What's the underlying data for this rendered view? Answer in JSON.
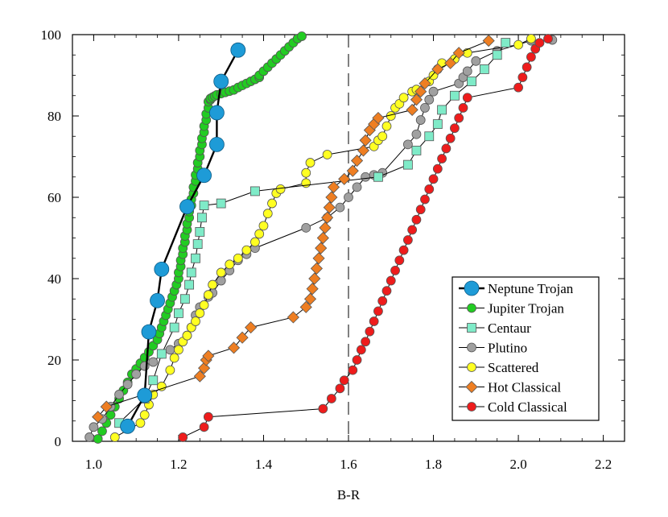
{
  "chart_data": {
    "type": "scatter",
    "title": "",
    "xlabel": "B-R",
    "ylabel": "",
    "xlim": [
      0.95,
      2.25
    ],
    "ylim": [
      0,
      100
    ],
    "xticks": [
      1.0,
      1.2,
      1.4,
      1.6,
      1.8,
      2.0,
      2.2
    ],
    "xtick_labels": [
      "1.0",
      "1.2",
      "1.4",
      "1.6",
      "1.8",
      "2.0",
      "2.2"
    ],
    "yticks": [
      0,
      20,
      40,
      60,
      80,
      100
    ],
    "ytick_labels": [
      "0",
      "20",
      "40",
      "60",
      "80",
      "100"
    ],
    "vline_x": 1.6,
    "grid": false,
    "legend_position": "bottom-right",
    "series": [
      {
        "name": "Neptune Trojan",
        "color": "#1E9BD7",
        "marker": "circle-large",
        "x": [
          1.08,
          1.12,
          1.13,
          1.15,
          1.16,
          1.22,
          1.26,
          1.29,
          1.29,
          1.3,
          1.34
        ],
        "y": [
          3.7,
          11.3,
          26.9,
          34.6,
          42.3,
          57.7,
          65.4,
          73.0,
          80.8,
          88.5,
          96.2
        ]
      },
      {
        "name": "Jupiter Trojan",
        "color": "#22CC22",
        "marker": "circle",
        "x": [
          1.01,
          1.02,
          1.03,
          1.04,
          1.05,
          1.06,
          1.07,
          1.08,
          1.09,
          1.1,
          1.11,
          1.12,
          1.13,
          1.14,
          1.15,
          1.155,
          1.16,
          1.165,
          1.17,
          1.175,
          1.18,
          1.185,
          1.19,
          1.195,
          1.2,
          1.2,
          1.205,
          1.205,
          1.21,
          1.21,
          1.215,
          1.215,
          1.22,
          1.22,
          1.225,
          1.225,
          1.23,
          1.23,
          1.235,
          1.235,
          1.24,
          1.24,
          1.245,
          1.245,
          1.25,
          1.25,
          1.255,
          1.255,
          1.26,
          1.26,
          1.265,
          1.265,
          1.27,
          1.27,
          1.275,
          1.275,
          1.28,
          1.285,
          1.29,
          1.3,
          1.31,
          1.32,
          1.33,
          1.34,
          1.35,
          1.36,
          1.37,
          1.38,
          1.39,
          1.39,
          1.4,
          1.41,
          1.42,
          1.43,
          1.44,
          1.45,
          1.46,
          1.47,
          1.48,
          1.49
        ],
        "y": [
          0.6,
          2.5,
          4.5,
          6.5,
          8.5,
          10.5,
          12.5,
          14.5,
          16.5,
          17.8,
          19.2,
          20.6,
          22.0,
          23.5,
          25.0,
          26.5,
          28.0,
          29.5,
          31.0,
          32.5,
          34.0,
          35.5,
          37.0,
          38.5,
          40.0,
          41.5,
          43.0,
          44.5,
          46.0,
          47.5,
          49.0,
          50.5,
          52.0,
          53.5,
          55.0,
          56.5,
          58.0,
          59.5,
          61.0,
          62.5,
          64.0,
          65.5,
          67.0,
          68.5,
          70.0,
          71.5,
          73.0,
          74.5,
          76.0,
          77.5,
          79.0,
          80.5,
          82.0,
          83.5,
          84.0,
          84.3,
          84.6,
          84.9,
          85.2,
          85.5,
          85.8,
          86.1,
          86.4,
          87.0,
          87.5,
          88.0,
          88.5,
          89.0,
          89.5,
          90.0,
          91.0,
          92.0,
          93.0,
          94.0,
          95.0,
          96.0,
          97.0,
          98.0,
          99.0,
          99.6
        ],
        "x_note": "",
        "y_note": ""
      },
      {
        "name": "Centaur",
        "color": "#7FEBC8",
        "marker": "square",
        "x": [
          1.06,
          1.12,
          1.14,
          1.16,
          1.19,
          1.2,
          1.215,
          1.225,
          1.23,
          1.24,
          1.245,
          1.25,
          1.255,
          1.26,
          1.3,
          1.38,
          1.67,
          1.74,
          1.76,
          1.79,
          1.81,
          1.82,
          1.85,
          1.89,
          1.92,
          1.95,
          1.97
        ],
        "y": [
          4.5,
          10.5,
          15.0,
          21.5,
          28.0,
          31.5,
          35.0,
          38.5,
          41.5,
          45.0,
          48.5,
          51.5,
          55.0,
          58.0,
          58.5,
          61.5,
          65.0,
          68.0,
          71.5,
          75.0,
          78.0,
          81.5,
          85.0,
          88.5,
          91.5,
          95.0,
          98.0
        ]
      },
      {
        "name": "Plutino",
        "color": "#A0A0A0",
        "marker": "circle",
        "x": [
          0.99,
          1.0,
          1.02,
          1.04,
          1.06,
          1.08,
          1.1,
          1.12,
          1.14,
          1.16,
          1.18,
          1.2,
          1.22,
          1.23,
          1.24,
          1.25,
          1.27,
          1.28,
          1.3,
          1.32,
          1.34,
          1.36,
          1.38,
          1.5,
          1.55,
          1.58,
          1.6,
          1.62,
          1.64,
          1.66,
          1.68,
          1.74,
          1.76,
          1.77,
          1.78,
          1.79,
          1.8,
          1.86,
          1.87,
          1.88,
          1.9,
          1.95,
          2.03,
          2.08
        ],
        "y": [
          1.0,
          3.5,
          5.5,
          8.5,
          11.5,
          14.0,
          16.5,
          18.5,
          19.5,
          21.5,
          22.5,
          24.0,
          26.0,
          28.0,
          31.0,
          33.0,
          35.5,
          36.5,
          39.5,
          42.0,
          44.5,
          46.0,
          47.5,
          52.5,
          55.0,
          57.5,
          60.0,
          62.5,
          65.0,
          65.5,
          66.0,
          73.0,
          75.5,
          79.0,
          82.0,
          84.0,
          86.0,
          88.0,
          89.5,
          91.0,
          93.5,
          96.0,
          98.5,
          98.7
        ]
      },
      {
        "name": "Scattered",
        "color": "#FFFF22",
        "marker": "circle",
        "x": [
          1.05,
          1.11,
          1.12,
          1.13,
          1.14,
          1.16,
          1.18,
          1.19,
          1.2,
          1.21,
          1.22,
          1.23,
          1.24,
          1.25,
          1.26,
          1.27,
          1.28,
          1.3,
          1.32,
          1.34,
          1.36,
          1.38,
          1.39,
          1.4,
          1.41,
          1.42,
          1.43,
          1.44,
          1.5,
          1.5,
          1.51,
          1.55,
          1.66,
          1.67,
          1.68,
          1.69,
          1.7,
          1.71,
          1.72,
          1.73,
          1.75,
          1.76,
          1.79,
          1.8,
          1.81,
          1.82,
          1.85,
          1.88,
          2.0,
          2.03
        ],
        "y": [
          1.0,
          4.5,
          6.5,
          9.0,
          11.5,
          13.5,
          17.5,
          20.5,
          22.5,
          24.5,
          26.0,
          28.0,
          29.5,
          31.5,
          33.5,
          36.0,
          38.5,
          41.5,
          43.5,
          45.0,
          47.0,
          49.0,
          51.0,
          53.0,
          56.0,
          58.5,
          61.0,
          62.0,
          63.5,
          66.0,
          68.5,
          70.5,
          72.5,
          74.0,
          75.0,
          77.5,
          80.0,
          82.0,
          83.0,
          84.5,
          86.0,
          86.5,
          88.5,
          90.0,
          91.5,
          93.0,
          94.0,
          95.5,
          97.5,
          99.0
        ]
      },
      {
        "name": "Hot Classical",
        "color": "#EE7E22",
        "marker": "diamond",
        "x": [
          1.01,
          1.03,
          1.25,
          1.26,
          1.265,
          1.27,
          1.33,
          1.35,
          1.37,
          1.47,
          1.5,
          1.51,
          1.515,
          1.52,
          1.525,
          1.53,
          1.535,
          1.54,
          1.545,
          1.55,
          1.555,
          1.56,
          1.565,
          1.59,
          1.61,
          1.62,
          1.635,
          1.64,
          1.65,
          1.66,
          1.67,
          1.75,
          1.76,
          1.77,
          1.78,
          1.81,
          1.84,
          1.86,
          1.93
        ],
        "y": [
          6.0,
          8.5,
          16.0,
          18.0,
          20.0,
          21.0,
          23.0,
          25.5,
          28.0,
          30.5,
          33.0,
          35.0,
          37.5,
          40.0,
          42.5,
          45.0,
          47.5,
          50.0,
          52.5,
          55.0,
          57.5,
          60.0,
          62.5,
          64.5,
          66.5,
          69.0,
          71.5,
          74.0,
          76.5,
          78.0,
          79.5,
          81.5,
          84.0,
          86.0,
          88.0,
          91.5,
          93.0,
          95.5,
          98.5
        ]
      },
      {
        "name": "Cold Classical",
        "color": "#EE1C1C",
        "marker": "circle",
        "x": [
          1.21,
          1.26,
          1.27,
          1.54,
          1.56,
          1.58,
          1.59,
          1.61,
          1.62,
          1.63,
          1.64,
          1.65,
          1.66,
          1.67,
          1.68,
          1.69,
          1.7,
          1.71,
          1.72,
          1.73,
          1.74,
          1.75,
          1.76,
          1.77,
          1.78,
          1.79,
          1.8,
          1.81,
          1.82,
          1.83,
          1.84,
          1.85,
          1.86,
          1.87,
          1.88,
          2.0,
          2.01,
          2.02,
          2.03,
          2.04,
          2.05,
          2.07
        ],
        "y": [
          1.0,
          3.5,
          6.0,
          8.0,
          10.5,
          13.0,
          15.0,
          17.5,
          20.0,
          22.5,
          24.5,
          27.0,
          29.5,
          32.0,
          34.5,
          37.0,
          39.5,
          42.0,
          44.5,
          47.0,
          49.5,
          52.0,
          54.5,
          57.0,
          59.5,
          62.0,
          64.5,
          67.0,
          69.5,
          72.0,
          74.5,
          77.0,
          79.5,
          82.0,
          84.5,
          87.0,
          89.5,
          92.0,
          94.5,
          96.5,
          98.0,
          99.0
        ]
      }
    ]
  }
}
